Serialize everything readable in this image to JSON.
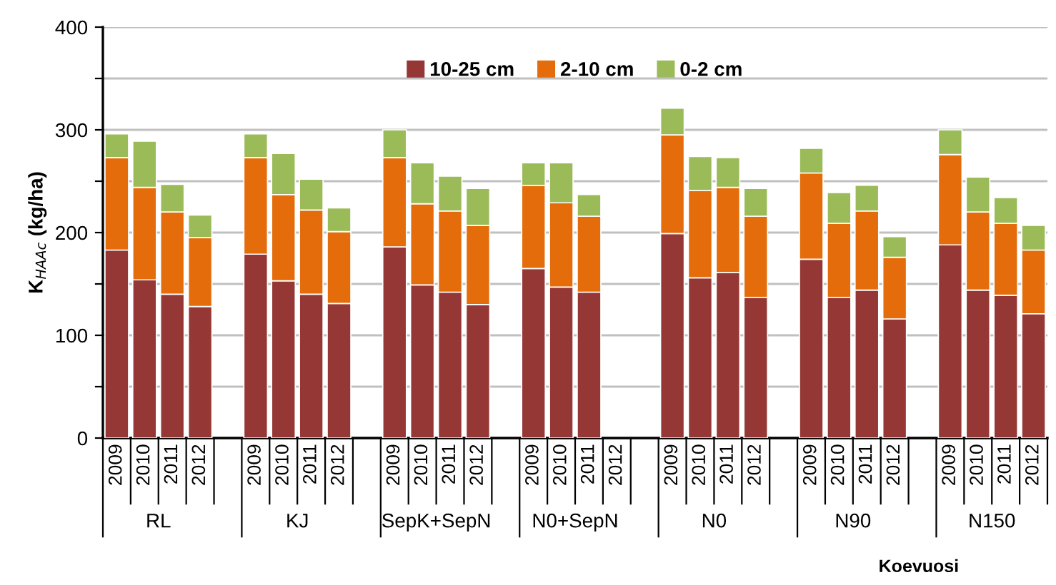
{
  "chart_data": {
    "type": "bar",
    "stacked": true,
    "ylabel": "K$_{HAAc}$ (kg/ha)",
    "xlabel": "Koevuosi",
    "categories": [
      "2009",
      "2010",
      "2011",
      "2012",
      null,
      "2009",
      "2010",
      "2011",
      "2012",
      null,
      "2009",
      "2010",
      "2011",
      "2012",
      null,
      "2009",
      "2010",
      "2011",
      "2012",
      null,
      "2009",
      "2010",
      "2011",
      "2012",
      null,
      "2009",
      "2010",
      "2011",
      "2012",
      null,
      "2009",
      "2010",
      "2011",
      "2012"
    ],
    "annotations": [
      "RL",
      "KJ",
      "SepK+SepN",
      "N0+SepN",
      "N0",
      "N90",
      "N150"
    ],
    "series": [
      {
        "name": "10-25 cm",
        "color": "#953735",
        "values": [
          183,
          154,
          140,
          128,
          null,
          179,
          153,
          140,
          131,
          null,
          186,
          149,
          142,
          130,
          null,
          165,
          147,
          142,
          null,
          null,
          199,
          156,
          161,
          137,
          null,
          174,
          137,
          144,
          116,
          null,
          188,
          144,
          139,
          121
        ]
      },
      {
        "name": "2-10 cm",
        "color": "#e46c0a",
        "values": [
          90,
          90,
          80,
          67,
          null,
          94,
          84,
          82,
          70,
          null,
          87,
          79,
          79,
          77,
          null,
          81,
          82,
          74,
          null,
          null,
          96,
          85,
          83,
          79,
          null,
          84,
          72,
          77,
          60,
          null,
          88,
          76,
          70,
          62
        ]
      },
      {
        "name": "0-2 cm",
        "color": "#9bbb59",
        "values": [
          23,
          45,
          27,
          22,
          null,
          23,
          40,
          30,
          23,
          null,
          27,
          40,
          34,
          36,
          null,
          22,
          39,
          21,
          null,
          null,
          26,
          33,
          29,
          27,
          null,
          24,
          30,
          25,
          20,
          null,
          24,
          34,
          25,
          24
        ]
      }
    ],
    "ylim": [
      0,
      400
    ],
    "yticks": [
      0,
      {
        "value": 50,
        "label": null
      },
      100,
      {
        "value": 150,
        "label": null
      },
      200,
      {
        "value": 250,
        "label": null
      },
      300,
      {
        "value": 350,
        "label": null
      },
      400
    ],
    "grid": "y",
    "legend": "top"
  }
}
